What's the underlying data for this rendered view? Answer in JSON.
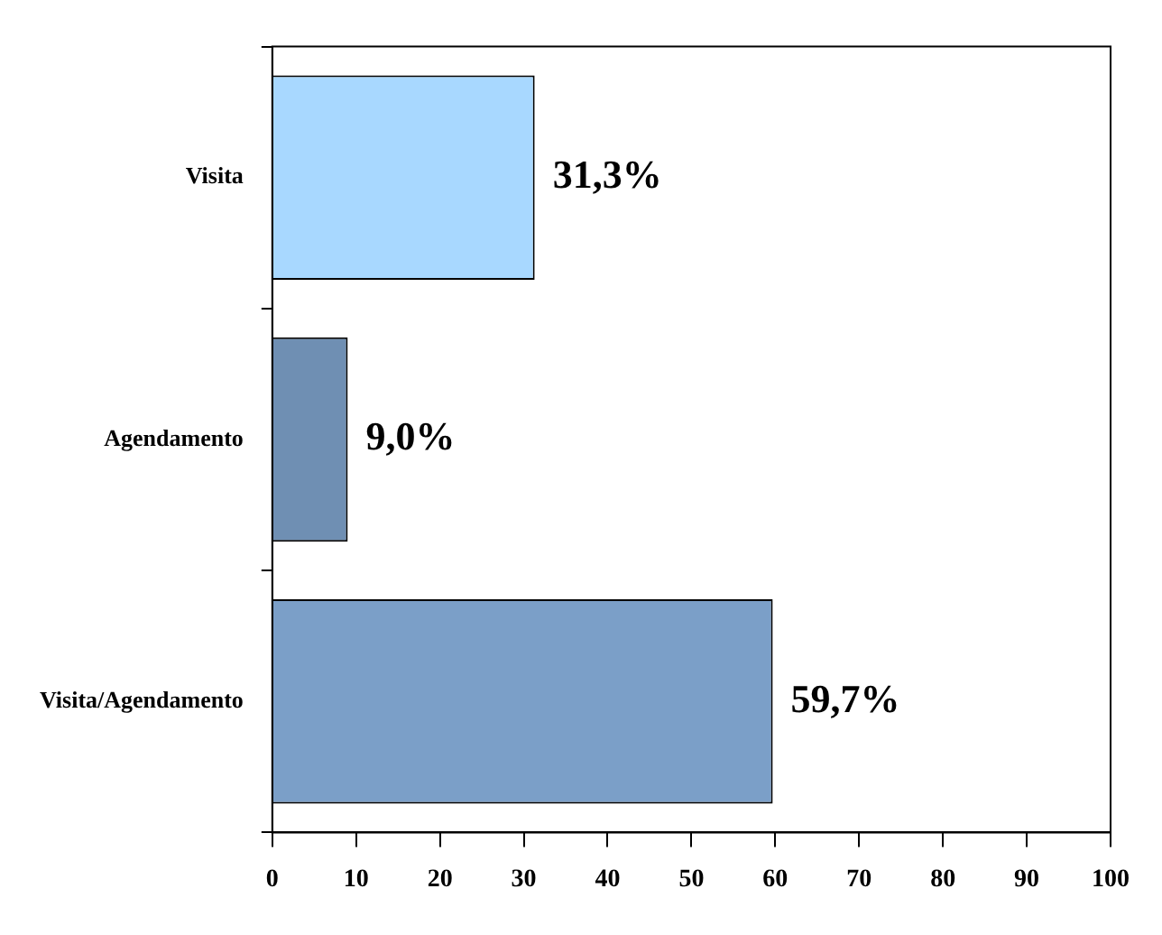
{
  "chart_data": {
    "type": "bar",
    "orientation": "horizontal",
    "categories": [
      "Visita",
      "Agendamento",
      "Visita/Agendamento"
    ],
    "values": [
      31.3,
      9.0,
      59.7
    ],
    "colors": [
      "#a8d8ff",
      "#6f8fb3",
      "#7b9fc8"
    ],
    "value_labels": [
      "31,3%",
      "9,0%",
      "59,7%"
    ],
    "xlim": [
      0,
      100
    ],
    "xticks": [
      0,
      10,
      20,
      30,
      40,
      50,
      60,
      70,
      80,
      90,
      100
    ],
    "grid": false,
    "legend": false
  }
}
